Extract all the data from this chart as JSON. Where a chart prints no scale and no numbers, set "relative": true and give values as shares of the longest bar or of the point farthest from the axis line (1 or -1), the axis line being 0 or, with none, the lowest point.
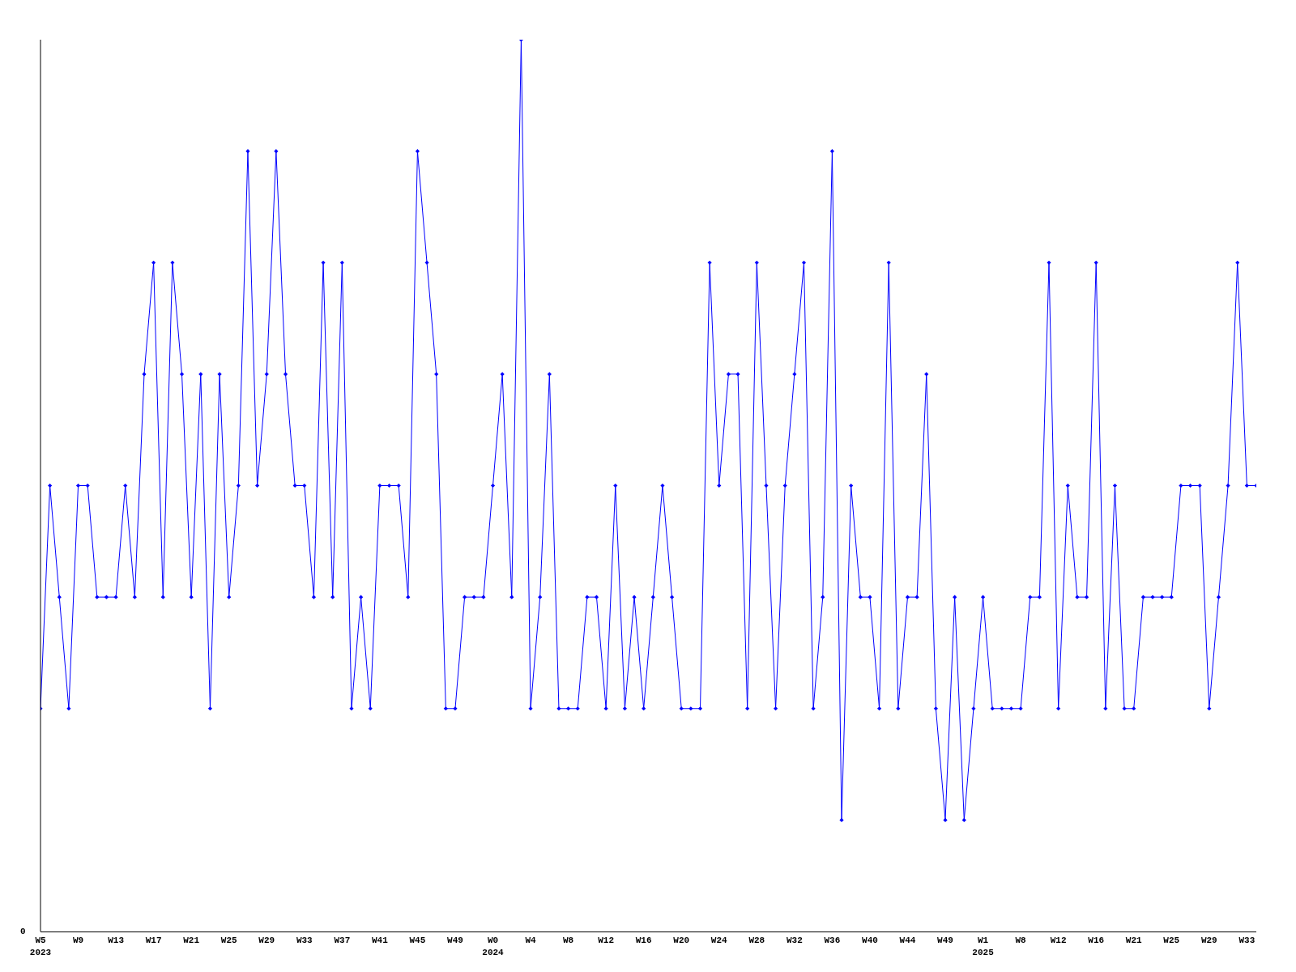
{
  "chart_data": {
    "type": "line",
    "relative": true,
    "marker": "diamond",
    "line_style": "solid",
    "grid": false,
    "categories": [
      "W5\n2023",
      null,
      null,
      null,
      "W9",
      null,
      null,
      null,
      "W13",
      null,
      null,
      null,
      "W17",
      null,
      null,
      null,
      "W21",
      null,
      null,
      null,
      "W25",
      null,
      null,
      null,
      "W29",
      null,
      null,
      null,
      "W33",
      null,
      null,
      null,
      "W37",
      null,
      null,
      null,
      "W41",
      null,
      null,
      null,
      "W45",
      null,
      null,
      null,
      "W49",
      null,
      null,
      null,
      "W0\n2024",
      null,
      null,
      null,
      "W4",
      null,
      null,
      null,
      "W8",
      null,
      null,
      null,
      "W12",
      null,
      null,
      null,
      "W16",
      null,
      null,
      null,
      "W20",
      null,
      null,
      null,
      "W24",
      null,
      null,
      null,
      "W28",
      null,
      null,
      null,
      "W32",
      null,
      null,
      null,
      "W36",
      null,
      null,
      null,
      "W40",
      null,
      null,
      null,
      "W44",
      null,
      null,
      null,
      "W49",
      null,
      null,
      null,
      "W1\n2025",
      null,
      null,
      null,
      "W8",
      null,
      null,
      null,
      "W12",
      null,
      null,
      null,
      "W16",
      null,
      null,
      null,
      "W21",
      null,
      null,
      null,
      "W25",
      null,
      null,
      null,
      "W29",
      null,
      null,
      null,
      "W33",
      null
    ],
    "series": [
      {
        "color": "#0000ff",
        "values": [
          0.25,
          0.5,
          0.375,
          0.25,
          0.5,
          0.5,
          0.375,
          0.375,
          0.375,
          0.5,
          0.375,
          0.625,
          0.75,
          0.375,
          0.75,
          0.625,
          0.375,
          0.625,
          0.25,
          0.625,
          0.375,
          0.5,
          0.875,
          0.5,
          0.625,
          0.875,
          0.625,
          0.5,
          0.5,
          0.375,
          0.75,
          0.375,
          0.75,
          0.25,
          0.375,
          0.25,
          0.5,
          0.5,
          0.5,
          0.375,
          0.875,
          0.75,
          0.625,
          0.25,
          0.25,
          0.375,
          0.375,
          0.375,
          0.5,
          0.625,
          0.375,
          1,
          0.25,
          0.375,
          0.625,
          0.25,
          0.25,
          0.25,
          0.375,
          0.375,
          0.25,
          0.5,
          0.25,
          0.375,
          0.25,
          0.375,
          0.5,
          0.375,
          0.25,
          0.25,
          0.25,
          0.75,
          0.5,
          0.625,
          0.625,
          0.25,
          0.75,
          0.5,
          0.25,
          0.5,
          0.625,
          0.75,
          0.25,
          0.375,
          0.875,
          0.125,
          0.5,
          0.375,
          0.375,
          0.25,
          0.75,
          0.25,
          0.375,
          0.375,
          0.625,
          0.25,
          0.125,
          0.375,
          0.125,
          0.25,
          0.375,
          0.25,
          0.25,
          0.25,
          0.25,
          0.375,
          0.375,
          0.75,
          0.25,
          0.5,
          0.375,
          0.375,
          0.75,
          0.25,
          0.5,
          0.25,
          0.25,
          0.375,
          0.375,
          0.375,
          0.375,
          0.5,
          0.5,
          0.5,
          0.25,
          0.375,
          0.5,
          0.75,
          0.5,
          0.5
        ]
      }
    ],
    "annotations": [
      "0"
    ]
  }
}
